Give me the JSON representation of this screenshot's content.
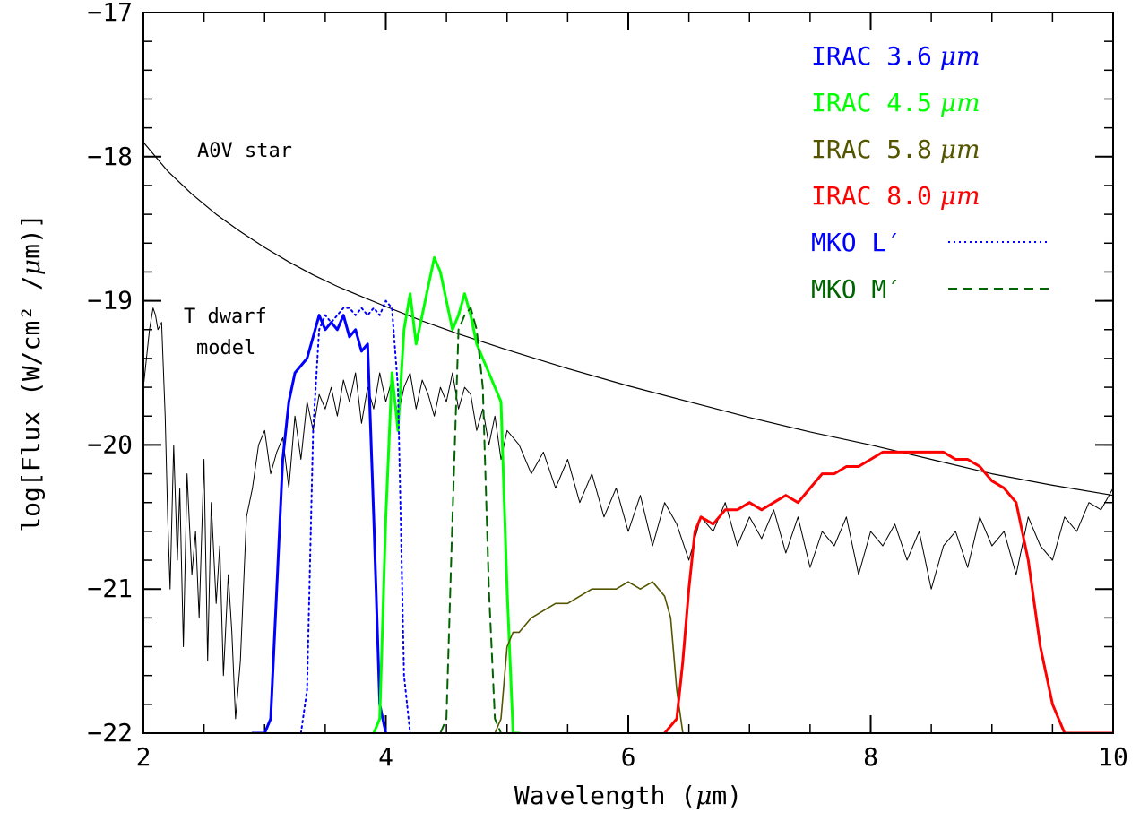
{
  "chart_data": {
    "type": "line",
    "xlabel_parts": [
      "Wavelength (",
      "μ",
      "m)"
    ],
    "ylabel_parts": [
      "log[Flux (W/cm² /",
      "μ",
      "m)]"
    ],
    "xlim": [
      2,
      10
    ],
    "ylim": [
      -22,
      -17
    ],
    "x_ticks": [
      2,
      4,
      6,
      8,
      10
    ],
    "y_ticks": [
      -22,
      -21,
      -20,
      -19,
      -18,
      -17
    ],
    "x_tick_labels": [
      "2",
      "4",
      "6",
      "8",
      "10"
    ],
    "y_tick_labels": [
      "−22",
      "−21",
      "−20",
      "−19",
      "−18",
      "−17"
    ],
    "x_minor_step": 0.5,
    "y_minor_step": 0.2,
    "annotations": {
      "a0v": "A0V star",
      "tdwarf_line1": "T dwarf",
      "tdwarf_line2": "model"
    },
    "legend_position": "top-right",
    "legend": [
      {
        "name": "IRAC 3.6",
        "unit": "μm",
        "color": "#0000ff",
        "style": "solid"
      },
      {
        "name": "IRAC 4.5",
        "unit": "μm",
        "color": "#00ff00",
        "style": "solid"
      },
      {
        "name": "IRAC 5.8",
        "unit": "μm",
        "color": "#555500",
        "style": "solid"
      },
      {
        "name": "IRAC 8.0",
        "unit": "μm",
        "color": "#ff0000",
        "style": "solid"
      },
      {
        "name": "MKO L′",
        "unit": "",
        "color": "#0000ff",
        "style": "dotted"
      },
      {
        "name": "MKO M′",
        "unit": "",
        "color": "#006400",
        "style": "dashed"
      }
    ],
    "series": [
      {
        "key": "a0v",
        "color": "#000000",
        "style": "solid",
        "width": 1.2,
        "x": [
          2.0,
          2.2,
          2.4,
          2.6,
          2.8,
          3.0,
          3.2,
          3.4,
          3.6,
          3.8,
          4.0,
          4.3,
          4.6,
          5.0,
          5.5,
          6.0,
          6.5,
          7.0,
          7.5,
          8.0,
          8.5,
          9.0,
          9.5,
          10.0
        ],
        "y": [
          -17.9,
          -18.1,
          -18.26,
          -18.4,
          -18.52,
          -18.63,
          -18.73,
          -18.82,
          -18.9,
          -18.97,
          -19.04,
          -19.14,
          -19.23,
          -19.34,
          -19.47,
          -19.59,
          -19.7,
          -19.81,
          -19.91,
          -20.0,
          -20.1,
          -20.2,
          -20.28,
          -20.35
        ]
      },
      {
        "key": "tdwarf",
        "color": "#000000",
        "style": "solid",
        "width": 1.0,
        "x": [
          2.0,
          2.05,
          2.08,
          2.1,
          2.12,
          2.15,
          2.18,
          2.2,
          2.22,
          2.25,
          2.28,
          2.3,
          2.33,
          2.36,
          2.4,
          2.43,
          2.46,
          2.5,
          2.53,
          2.56,
          2.6,
          2.63,
          2.66,
          2.7,
          2.73,
          2.76,
          2.8,
          2.85,
          2.9,
          2.95,
          3.0,
          3.05,
          3.1,
          3.15,
          3.2,
          3.25,
          3.3,
          3.35,
          3.4,
          3.45,
          3.5,
          3.55,
          3.6,
          3.65,
          3.7,
          3.75,
          3.8,
          3.85,
          3.9,
          3.95,
          4.0,
          4.05,
          4.1,
          4.15,
          4.2,
          4.25,
          4.3,
          4.35,
          4.4,
          4.45,
          4.5,
          4.55,
          4.6,
          4.65,
          4.7,
          4.75,
          4.8,
          4.85,
          4.9,
          4.95,
          5.0,
          5.1,
          5.2,
          5.3,
          5.4,
          5.5,
          5.6,
          5.7,
          5.8,
          5.9,
          6.0,
          6.1,
          6.2,
          6.3,
          6.4,
          6.5,
          6.6,
          6.7,
          6.8,
          6.9,
          7.0,
          7.1,
          7.2,
          7.3,
          7.4,
          7.5,
          7.6,
          7.7,
          7.8,
          7.9,
          8.0,
          8.1,
          8.2,
          8.3,
          8.4,
          8.5,
          8.6,
          8.7,
          8.8,
          8.9,
          9.0,
          9.1,
          9.2,
          9.3,
          9.4,
          9.5,
          9.6,
          9.7,
          9.8,
          9.9,
          10.0
        ],
        "y": [
          -19.6,
          -19.2,
          -19.05,
          -19.1,
          -19.2,
          -19.15,
          -19.8,
          -20.5,
          -21.0,
          -20.0,
          -20.8,
          -20.3,
          -21.4,
          -20.2,
          -20.9,
          -20.6,
          -21.2,
          -20.1,
          -21.5,
          -20.4,
          -21.1,
          -20.7,
          -21.6,
          -20.9,
          -21.3,
          -21.9,
          -21.5,
          -20.5,
          -20.3,
          -20.0,
          -19.9,
          -20.2,
          -20.05,
          -19.95,
          -20.3,
          -19.8,
          -20.1,
          -19.7,
          -19.9,
          -19.65,
          -19.75,
          -19.6,
          -19.8,
          -19.55,
          -19.7,
          -19.5,
          -19.85,
          -19.6,
          -19.75,
          -19.5,
          -19.7,
          -19.55,
          -19.8,
          -19.6,
          -19.5,
          -19.75,
          -19.55,
          -19.65,
          -19.8,
          -19.6,
          -19.7,
          -19.5,
          -19.75,
          -19.6,
          -19.65,
          -19.9,
          -19.75,
          -20.0,
          -19.8,
          -20.1,
          -19.9,
          -20.0,
          -20.2,
          -20.05,
          -20.3,
          -20.1,
          -20.4,
          -20.2,
          -20.5,
          -20.3,
          -20.6,
          -20.35,
          -20.7,
          -20.4,
          -20.55,
          -20.8,
          -20.5,
          -20.6,
          -20.4,
          -20.7,
          -20.5,
          -20.65,
          -20.45,
          -20.75,
          -20.5,
          -20.85,
          -20.6,
          -20.7,
          -20.5,
          -20.9,
          -20.6,
          -20.7,
          -20.55,
          -20.8,
          -20.6,
          -21.0,
          -20.7,
          -20.6,
          -20.85,
          -20.5,
          -20.7,
          -20.6,
          -20.9,
          -20.5,
          -20.7,
          -20.8,
          -20.5,
          -20.6,
          -20.4,
          -20.45,
          -20.3
        ]
      },
      {
        "key": "irac36",
        "color": "#0000ff",
        "style": "solid",
        "width": 3.0,
        "x": [
          2.9,
          3.0,
          3.05,
          3.1,
          3.15,
          3.2,
          3.25,
          3.3,
          3.35,
          3.4,
          3.45,
          3.5,
          3.55,
          3.6,
          3.65,
          3.7,
          3.75,
          3.8,
          3.85,
          3.9,
          3.95,
          4.0
        ],
        "y": [
          -22.0,
          -22.0,
          -21.9,
          -21.0,
          -20.1,
          -19.7,
          -19.5,
          -19.45,
          -19.4,
          -19.25,
          -19.1,
          -19.2,
          -19.15,
          -19.2,
          -19.1,
          -19.25,
          -19.2,
          -19.35,
          -19.3,
          -20.5,
          -21.8,
          -22.0
        ]
      },
      {
        "key": "irac45",
        "color": "#00ff00",
        "style": "solid",
        "width": 3.0,
        "x": [
          3.9,
          3.95,
          4.0,
          4.05,
          4.1,
          4.15,
          4.2,
          4.25,
          4.3,
          4.35,
          4.4,
          4.45,
          4.5,
          4.55,
          4.6,
          4.65,
          4.7,
          4.75,
          4.8,
          4.85,
          4.9,
          4.95,
          5.0,
          5.05,
          5.1
        ],
        "y": [
          -22.0,
          -21.9,
          -20.5,
          -19.5,
          -19.9,
          -19.2,
          -18.95,
          -19.3,
          -19.1,
          -18.9,
          -18.7,
          -18.8,
          -19.0,
          -19.2,
          -19.1,
          -18.95,
          -19.1,
          -19.3,
          -19.4,
          -19.5,
          -19.6,
          -19.7,
          -21.0,
          -22.0,
          -22.0
        ]
      },
      {
        "key": "irac58",
        "color": "#555500",
        "style": "solid",
        "width": 1.6,
        "x": [
          4.9,
          4.95,
          5.0,
          5.05,
          5.1,
          5.2,
          5.3,
          5.4,
          5.5,
          5.6,
          5.7,
          5.8,
          5.9,
          6.0,
          6.1,
          6.2,
          6.3,
          6.35,
          6.4,
          6.45,
          6.5
        ],
        "y": [
          -22.0,
          -21.9,
          -21.4,
          -21.3,
          -21.3,
          -21.2,
          -21.15,
          -21.1,
          -21.1,
          -21.05,
          -21.0,
          -21.0,
          -21.0,
          -20.95,
          -21.0,
          -20.95,
          -21.05,
          -21.2,
          -21.7,
          -22.0,
          -22.0
        ]
      },
      {
        "key": "irac80",
        "color": "#ff0000",
        "style": "solid",
        "width": 3.0,
        "x": [
          6.3,
          6.4,
          6.45,
          6.5,
          6.55,
          6.6,
          6.7,
          6.8,
          6.9,
          7.0,
          7.1,
          7.2,
          7.3,
          7.4,
          7.5,
          7.6,
          7.7,
          7.8,
          7.9,
          8.0,
          8.1,
          8.2,
          8.3,
          8.4,
          8.5,
          8.6,
          8.7,
          8.8,
          8.9,
          9.0,
          9.1,
          9.2,
          9.3,
          9.4,
          9.5,
          9.6,
          9.7,
          9.8,
          10.0
        ],
        "y": [
          -22.0,
          -21.9,
          -21.5,
          -21.0,
          -20.6,
          -20.5,
          -20.55,
          -20.45,
          -20.45,
          -20.4,
          -20.45,
          -20.4,
          -20.35,
          -20.4,
          -20.3,
          -20.2,
          -20.2,
          -20.15,
          -20.15,
          -20.1,
          -20.05,
          -20.05,
          -20.05,
          -20.05,
          -20.05,
          -20.05,
          -20.1,
          -20.1,
          -20.15,
          -20.25,
          -20.3,
          -20.4,
          -20.8,
          -21.4,
          -21.8,
          -22.0,
          -22.0,
          -22.0,
          -22.0
        ]
      },
      {
        "key": "mkol",
        "color": "#0000ff",
        "style": "dotted",
        "width": 2.0,
        "x": [
          3.3,
          3.35,
          3.4,
          3.45,
          3.5,
          3.55,
          3.6,
          3.65,
          3.7,
          3.75,
          3.8,
          3.85,
          3.9,
          3.95,
          4.0,
          4.05,
          4.1,
          4.15,
          4.2
        ],
        "y": [
          -22.0,
          -21.7,
          -19.9,
          -19.2,
          -19.1,
          -19.15,
          -19.1,
          -19.05,
          -19.05,
          -19.1,
          -19.05,
          -19.1,
          -19.05,
          -19.1,
          -19.0,
          -19.05,
          -19.6,
          -21.6,
          -22.0
        ]
      },
      {
        "key": "mkom",
        "color": "#006400",
        "style": "dashed",
        "width": 2.0,
        "x": [
          4.45,
          4.5,
          4.55,
          4.6,
          4.65,
          4.7,
          4.75,
          4.8,
          4.85,
          4.9,
          4.95
        ],
        "y": [
          -22.0,
          -21.9,
          -20.5,
          -19.2,
          -19.1,
          -19.05,
          -19.2,
          -19.6,
          -21.0,
          -21.9,
          -22.0
        ]
      }
    ]
  }
}
